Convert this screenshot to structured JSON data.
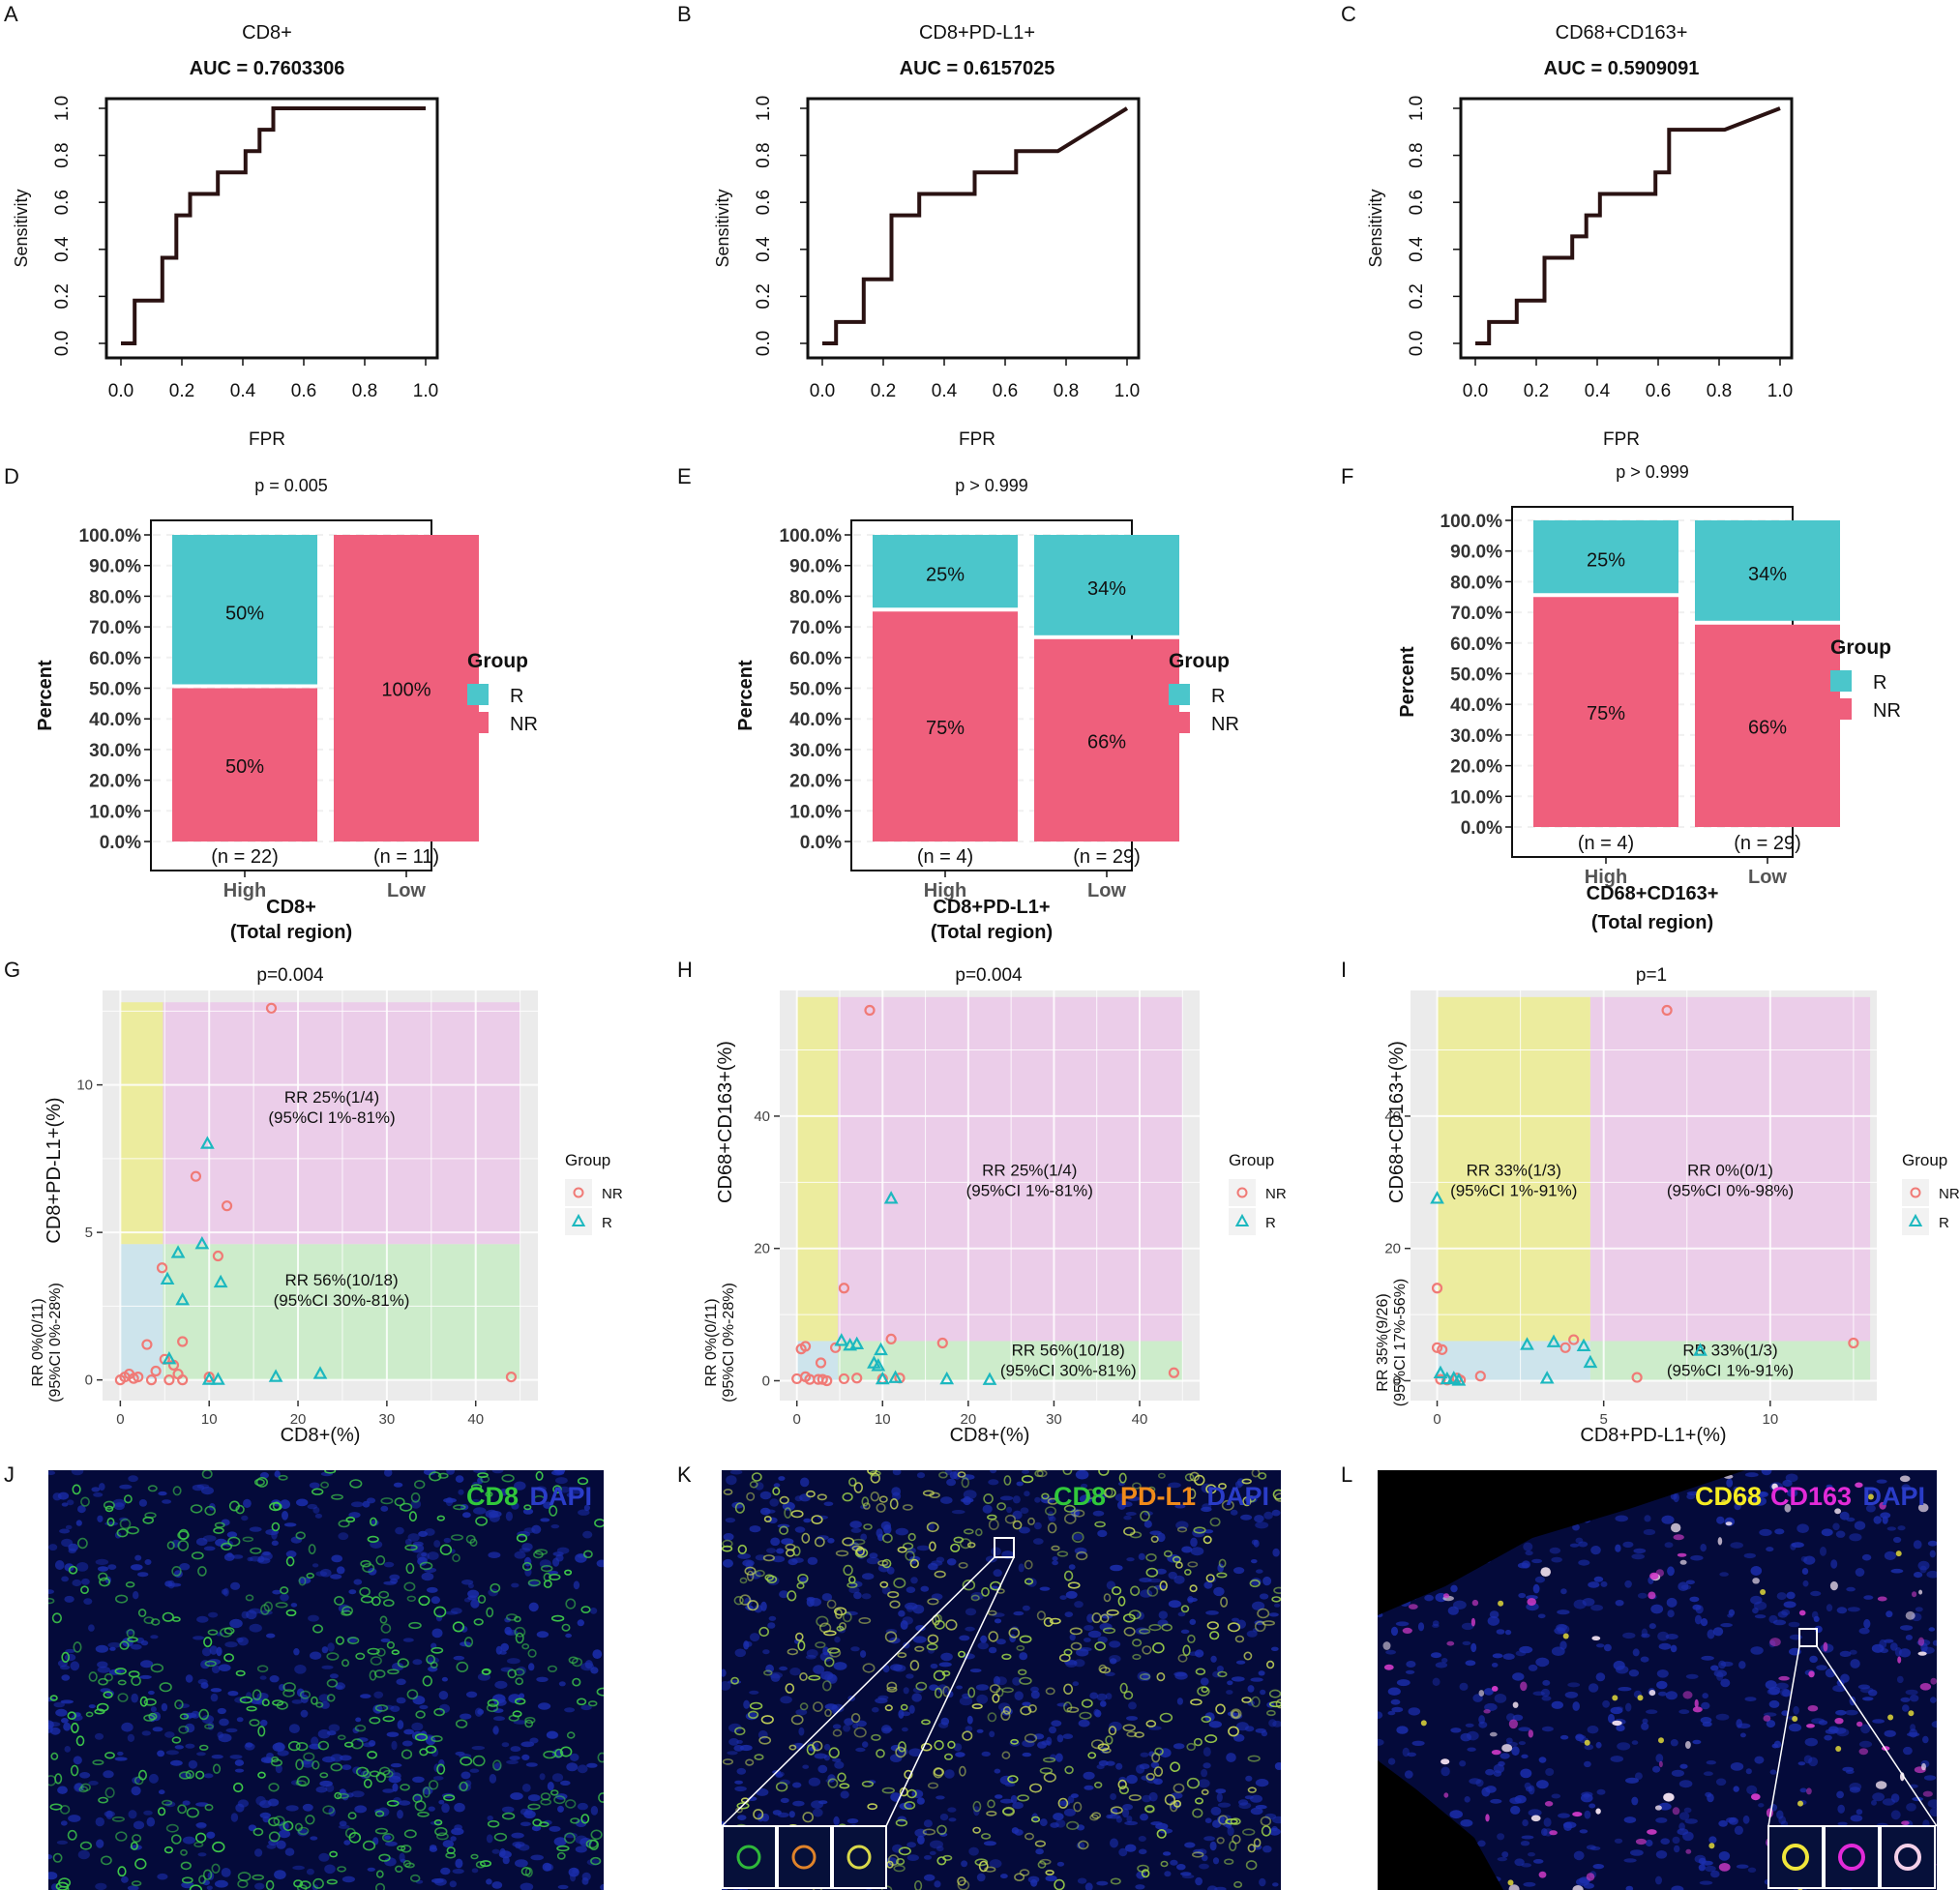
{
  "colors": {
    "teal": "#4bc6cb",
    "pink": "#ef5f7c",
    "nr_point": "#f07a76",
    "r_point": "#1cb8bf",
    "yellow_zone": "#ecec9e",
    "purple_zone": "#ebcde9",
    "green_zone": "#cdeccb",
    "blue_zone": "#cde4ec",
    "panel_grey": "#ebebeb",
    "micro_bg": "#040a3a"
  },
  "chart_data": [
    {
      "panel": "A",
      "type": "line",
      "title": "CD8+",
      "subtitle": "AUC = 0.7603306",
      "xlabel": "FPR",
      "ylabel": "Sensitivity",
      "xlim": [
        0,
        1
      ],
      "ylim": [
        0,
        1
      ],
      "ticks": [
        "0.0",
        "0.2",
        "0.4",
        "0.6",
        "0.8",
        "1.0"
      ],
      "x": [
        0,
        0.045,
        0.045,
        0.136,
        0.136,
        0.182,
        0.182,
        0.227,
        0.227,
        0.318,
        0.318,
        0.409,
        0.409,
        0.455,
        0.455,
        0.5,
        0.5,
        1.0
      ],
      "y": [
        0,
        0,
        0.182,
        0.182,
        0.364,
        0.364,
        0.545,
        0.545,
        0.636,
        0.636,
        0.727,
        0.727,
        0.818,
        0.818,
        0.909,
        0.909,
        1.0,
        1.0
      ]
    },
    {
      "panel": "B",
      "type": "line",
      "title": "CD8+PD-L1+",
      "subtitle": "AUC = 0.6157025",
      "xlabel": "FPR",
      "ylabel": "Sensitivity",
      "xlim": [
        0,
        1
      ],
      "ylim": [
        0,
        1
      ],
      "ticks": [
        "0.0",
        "0.2",
        "0.4",
        "0.6",
        "0.8",
        "1.0"
      ],
      "x": [
        0,
        0.045,
        0.045,
        0.136,
        0.136,
        0.227,
        0.227,
        0.318,
        0.318,
        0.5,
        0.5,
        0.636,
        0.636,
        0.773,
        1.0
      ],
      "y": [
        0,
        0,
        0.091,
        0.091,
        0.273,
        0.273,
        0.545,
        0.545,
        0.636,
        0.636,
        0.727,
        0.727,
        0.818,
        0.818,
        1.0
      ]
    },
    {
      "panel": "C",
      "type": "line",
      "title": "CD68+CD163+",
      "subtitle": "AUC = 0.5909091",
      "xlabel": "FPR",
      "ylabel": "Sensitivity",
      "xlim": [
        0,
        1
      ],
      "ylim": [
        0,
        1
      ],
      "ticks": [
        "0.0",
        "0.2",
        "0.4",
        "0.6",
        "0.8",
        "1.0"
      ],
      "x": [
        0,
        0.045,
        0.045,
        0.136,
        0.136,
        0.227,
        0.227,
        0.318,
        0.318,
        0.364,
        0.364,
        0.409,
        0.409,
        0.591,
        0.591,
        0.636,
        0.636,
        0.818,
        1.0
      ],
      "y": [
        0,
        0,
        0.091,
        0.091,
        0.182,
        0.182,
        0.364,
        0.364,
        0.455,
        0.455,
        0.545,
        0.545,
        0.636,
        0.636,
        0.727,
        0.727,
        0.909,
        0.909,
        1.0
      ]
    },
    {
      "panel": "D",
      "type": "bar",
      "subtitle": "p = 0.005",
      "xlabel_lines": [
        "CD8+",
        "(Total region)"
      ],
      "ylabel": "Percent",
      "categories": [
        "High",
        "Low"
      ],
      "counts": [
        "(n = 22)",
        "(n = 11)"
      ],
      "series": [
        {
          "name": "NR",
          "values": [
            50,
            100
          ],
          "labels": [
            "50%",
            "100%"
          ]
        },
        {
          "name": "R",
          "values": [
            50,
            0
          ],
          "labels": [
            "50%",
            ""
          ]
        }
      ],
      "ticks": [
        "0.0%",
        "10.0%",
        "20.0%",
        "30.0%",
        "40.0%",
        "50.0%",
        "60.0%",
        "70.0%",
        "80.0%",
        "90.0%",
        "100.0%"
      ],
      "legend_title": "Group",
      "legend": [
        "R",
        "NR"
      ]
    },
    {
      "panel": "E",
      "type": "bar",
      "subtitle": "p > 0.999",
      "xlabel_lines": [
        "CD8+PD-L1+",
        "(Total region)"
      ],
      "ylabel": "Percent",
      "categories": [
        "High",
        "Low"
      ],
      "counts": [
        "(n = 4)",
        "(n = 29)"
      ],
      "series": [
        {
          "name": "NR",
          "values": [
            75,
            66
          ],
          "labels": [
            "75%",
            "66%"
          ]
        },
        {
          "name": "R",
          "values": [
            25,
            34
          ],
          "labels": [
            "25%",
            "34%"
          ]
        }
      ],
      "ticks": [
        "0.0%",
        "10.0%",
        "20.0%",
        "30.0%",
        "40.0%",
        "50.0%",
        "60.0%",
        "70.0%",
        "80.0%",
        "90.0%",
        "100.0%"
      ],
      "legend_title": "Group",
      "legend": [
        "R",
        "NR"
      ]
    },
    {
      "panel": "F",
      "type": "bar",
      "subtitle": "p > 0.999",
      "xlabel_lines": [
        "CD68+CD163+",
        "(Total region)"
      ],
      "ylabel": "Percent",
      "categories": [
        "High",
        "Low"
      ],
      "counts": [
        "(n = 4)",
        "(n = 29)"
      ],
      "series": [
        {
          "name": "NR",
          "values": [
            75,
            66
          ],
          "labels": [
            "75%",
            "66%"
          ]
        },
        {
          "name": "R",
          "values": [
            25,
            34
          ],
          "labels": [
            "25%",
            "34%"
          ]
        }
      ],
      "ticks": [
        "0.0%",
        "10.0%",
        "20.0%",
        "30.0%",
        "40.0%",
        "50.0%",
        "60.0%",
        "70.0%",
        "80.0%",
        "90.0%",
        "100.0%"
      ],
      "legend_title": "Group",
      "legend": [
        "R",
        "NR"
      ]
    },
    {
      "panel": "G",
      "type": "scatter",
      "subtitle": "p=0.004",
      "xlabel": "CD8+(%)",
      "ylabel": "CD8+PD-L1+(%)",
      "xlim": [
        -2,
        47
      ],
      "ylim": [
        -0.7,
        13.2
      ],
      "xticks": [
        0,
        10,
        20,
        30,
        40
      ],
      "yticks": [
        0,
        5,
        10
      ],
      "cut_x": 4.8,
      "cut_y": 4.6,
      "zone_ymax": 12.8,
      "zone_xmax": 45,
      "zones": {
        "upper_right": [
          "RR 25%(1/4)",
          "(95%CI 1%-81%)"
        ],
        "lower_right": [
          "RR 56%(10/18)",
          "(95%CI 30%-81%)"
        ],
        "lower_left": [
          "RR 0%(0/11)",
          "(95%CI 0%-28%)"
        ]
      },
      "legend_title": "Group",
      "legend": [
        "NR",
        "R"
      ],
      "NR": [
        [
          17,
          12.6
        ],
        [
          8.5,
          6.9
        ],
        [
          12,
          5.9
        ],
        [
          11,
          4.2
        ],
        [
          4.7,
          3.8
        ],
        [
          3,
          1.2
        ],
        [
          7,
          1.3
        ],
        [
          5,
          0.7
        ],
        [
          6,
          0.5
        ],
        [
          4,
          0.3
        ],
        [
          0.5,
          0.1
        ],
        [
          1,
          0.2
        ],
        [
          1.5,
          0.05
        ],
        [
          2,
          0.1
        ],
        [
          3.5,
          0
        ],
        [
          5.5,
          0
        ],
        [
          6.5,
          0.2
        ],
        [
          7,
          0
        ],
        [
          10,
          0.1
        ],
        [
          44,
          0.1
        ],
        [
          0,
          0
        ]
      ],
      "R": [
        [
          9.8,
          8
        ],
        [
          9.2,
          4.6
        ],
        [
          6.5,
          4.3
        ],
        [
          11.3,
          3.3
        ],
        [
          5.3,
          3.4
        ],
        [
          7,
          2.7
        ],
        [
          5.5,
          0.7
        ],
        [
          10,
          0
        ],
        [
          11,
          0
        ],
        [
          17.5,
          0.1
        ],
        [
          22.5,
          0.2
        ]
      ]
    },
    {
      "panel": "H",
      "type": "scatter",
      "subtitle": "p=0.004",
      "xlabel": "CD8+(%)",
      "ylabel": "CD68+CD163+(%)",
      "xlim": [
        -2,
        47
      ],
      "ylim": [
        -3,
        59
      ],
      "xticks": [
        0,
        10,
        20,
        30,
        40
      ],
      "yticks": [
        0,
        20,
        40
      ],
      "cut_x": 4.8,
      "cut_y": 6.0,
      "zone_ymax": 58,
      "zone_xmax": 45,
      "zones": {
        "upper_right": [
          "RR 25%(1/4)",
          "(95%CI 1%-81%)"
        ],
        "lower_right": [
          "RR 56%(10/18)",
          "(95%CI 30%-81%)"
        ],
        "lower_left": [
          "RR 0%(0/11)",
          "(95%CI 0%-28%)"
        ]
      },
      "legend_title": "Group",
      "legend": [
        "NR",
        "R"
      ],
      "NR": [
        [
          8.5,
          56
        ],
        [
          5.5,
          14
        ],
        [
          11,
          6.3
        ],
        [
          17,
          5.7
        ],
        [
          0.5,
          4.8
        ],
        [
          1,
          5.2
        ],
        [
          4.5,
          5
        ],
        [
          0,
          0.3
        ],
        [
          1,
          0.6
        ],
        [
          1.5,
          0.2
        ],
        [
          2.5,
          0.2
        ],
        [
          3,
          0.2
        ],
        [
          3.5,
          0
        ],
        [
          5.5,
          0.3
        ],
        [
          7,
          0.4
        ],
        [
          10,
          0.3
        ],
        [
          12,
          0.4
        ],
        [
          44,
          1.2
        ],
        [
          2.8,
          2.7
        ]
      ],
      "R": [
        [
          11,
          27.5
        ],
        [
          5.2,
          6
        ],
        [
          6.2,
          5.3
        ],
        [
          7,
          5.5
        ],
        [
          9.8,
          4.6
        ],
        [
          9.5,
          2.2
        ],
        [
          10,
          0.2
        ],
        [
          9,
          2.6
        ],
        [
          11.5,
          0.4
        ],
        [
          17.5,
          0.2
        ],
        [
          22.5,
          0.1
        ]
      ]
    },
    {
      "panel": "I",
      "type": "scatter",
      "subtitle": "p=1",
      "xlabel": "CD8+PD-L1+(%)",
      "ylabel": "CD68+CD163+(%)",
      "xlim": [
        -0.8,
        13.2
      ],
      "ylim": [
        -3,
        59
      ],
      "xticks": [
        0,
        5,
        10
      ],
      "yticks": [
        0,
        20,
        40
      ],
      "cut_x": 0,
      "cut_x2": 4.6,
      "cut_y": 6.0,
      "zone_ymax": 58,
      "zone_xmax": 13,
      "zones": {
        "yellow": [
          "RR 33%(1/3)",
          "(95%CI 1%-91%)"
        ],
        "upper_right": [
          "RR 0%(0/1)",
          "(95%CI 0%-98%)"
        ],
        "lower_right": [
          "RR 33%(1/3)",
          "(95%CI 1%-91%)"
        ],
        "lower_left": [
          "RR 35%(9/26)",
          "(95%CI 17%-56%)"
        ]
      },
      "legend_title": "Group",
      "legend": [
        "NR",
        "R"
      ],
      "NR": [
        [
          6.9,
          56
        ],
        [
          0,
          14
        ],
        [
          0,
          5
        ],
        [
          0.15,
          4.7
        ],
        [
          4.1,
          6.2
        ],
        [
          12.5,
          5.7
        ],
        [
          3.85,
          5
        ],
        [
          6,
          0.5
        ],
        [
          1.3,
          0.7
        ],
        [
          0.6,
          0.4
        ],
        [
          0.1,
          0.2
        ],
        [
          0.3,
          0.1
        ],
        [
          0.7,
          0.1
        ]
      ],
      "R": [
        [
          0,
          27.5
        ],
        [
          3.5,
          5.8
        ],
        [
          2.7,
          5.4
        ],
        [
          4.4,
          5.2
        ],
        [
          4.6,
          2.7
        ],
        [
          7.9,
          4.5
        ],
        [
          3.3,
          0.3
        ],
        [
          0.1,
          1.1
        ],
        [
          0.3,
          0.2
        ],
        [
          0.5,
          0.3
        ],
        [
          0.65,
          0
        ]
      ]
    }
  ],
  "micrographs": [
    {
      "panel": "J",
      "labels": [
        {
          "text": "CD8",
          "color": "#31c83b"
        },
        {
          "text": "DAPI",
          "color": "#2a3cc8"
        }
      ]
    },
    {
      "panel": "K",
      "labels": [
        {
          "text": "CD8",
          "color": "#31c83b"
        },
        {
          "text": "PD-L1",
          "color": "#f08a1a"
        },
        {
          "text": "DAPI",
          "color": "#2a3cc8"
        }
      ]
    },
    {
      "panel": "L",
      "labels": [
        {
          "text": "CD68",
          "color": "#f6ec23"
        },
        {
          "text": "CD163",
          "color": "#e22ad8"
        },
        {
          "text": "DAPI",
          "color": "#2a3cc8"
        }
      ]
    }
  ]
}
